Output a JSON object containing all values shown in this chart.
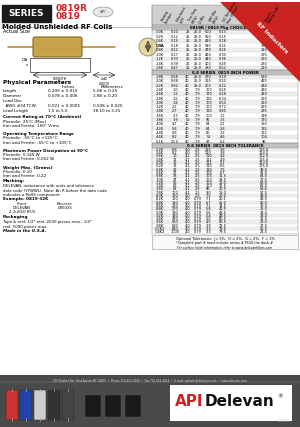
{
  "title_series": "SERIES",
  "title_part1": "0819R",
  "title_part2": "0819",
  "subtitle": "Molded Unshielded RF Coils",
  "actual_size_label": "Actual Size",
  "rf_inductors_label": "RF Inductors",
  "table1_header": "0819R / 0819 Pkg CHOICE CONT.",
  "table2_header": "0.8 SERIES  0819 INCH POWER",
  "table3_header": "0.8 SERIES  0819 INCH TOLERANCE",
  "col_headers": [
    "Catalog\nNumber",
    "Inductance\n(uH)",
    "Test\nFreq\n(MHz)",
    "Q\nMin",
    "SRF\nMin\n(MHz)",
    "DC\nResistance\nMax\n(Ohms)",
    "Current\nRating\n(mA)"
  ],
  "table1_data": [
    [
      "-00K",
      "0.10",
      "25",
      "25.0",
      "500",
      "0.13",
      "495"
    ],
    [
      "-02K",
      "0.12",
      "25",
      "25.0",
      "550",
      "0.15",
      "450"
    ],
    [
      "-04K",
      "0.15",
      "25",
      "25.0",
      "480",
      "0.18",
      "390"
    ],
    [
      "-06K",
      "0.18",
      "25",
      "25.0",
      "540",
      "0.21",
      "355"
    ],
    [
      "-08K",
      "0.22",
      "25",
      "25.0",
      "470",
      "0.26",
      "310"
    ],
    [
      "-10K",
      "0.27",
      "25",
      "25.0",
      "480",
      "0.30",
      "285"
    ],
    [
      "-12K",
      "0.33",
      "25",
      "25.0",
      "440",
      "0.36",
      "260"
    ],
    [
      "-14K",
      "0.39",
      "25",
      "25.0",
      "400",
      "0.45",
      "230"
    ],
    [
      "-16K",
      "0.47",
      "25",
      "25.0",
      "380",
      "0.52",
      "210"
    ]
  ],
  "table2_data": [
    [
      "-18K",
      "0.56",
      "40",
      "25.0",
      "270",
      "0.19",
      "510"
    ],
    [
      "-20K",
      "0.68",
      "40",
      "25.0",
      "215",
      "0.20",
      "465"
    ],
    [
      "-22K",
      "0.82",
      "40",
      "25.0",
      "200",
      "0.22",
      "430"
    ],
    [
      "-24K",
      "1.0",
      "40",
      "7.9",
      "100",
      "0.25",
      "430"
    ],
    [
      "-26K",
      "1.2",
      "40",
      "7.9",
      "170",
      "0.28",
      "410"
    ],
    [
      "-28K",
      "1.5",
      "40",
      "7.9",
      "125",
      "0.34",
      "360"
    ],
    [
      "-30K",
      "1.8",
      "40",
      "7.9",
      "105",
      "0.50",
      "290"
    ],
    [
      "-32K",
      "2.2",
      "40",
      "7.9",
      "100",
      "0.72",
      "255"
    ],
    [
      "-34K",
      "2.7",
      "40",
      "7.9",
      "115",
      "0.85",
      "235"
    ],
    [
      "-36K",
      "3.3",
      "40",
      "7.9",
      "100",
      "1.2",
      "198"
    ],
    [
      "-38K",
      "3.9",
      "50",
      "7.9",
      "95",
      "1.5",
      "170"
    ],
    [
      "-40K",
      "4.7",
      "40",
      "7.9",
      "84",
      "2.1",
      "150"
    ],
    [
      "-42K",
      "5.6",
      "40",
      "7.9",
      "64",
      "2.6",
      "135"
    ],
    [
      "-44K",
      "6.8",
      "40",
      "7.9",
      "60",
      "3.2",
      "122"
    ],
    [
      "-46K",
      "8.2",
      "40",
      "7.9",
      "52",
      "4.6",
      "104"
    ],
    [
      "-51K",
      "10.0",
      "40",
      "7.9",
      "47",
      "5.2",
      "96"
    ]
  ],
  "table3_data": [
    [
      "-52K",
      "6.8",
      "4.0",
      "2.5",
      "215",
      "3.6",
      "125.0"
    ],
    [
      "-54K",
      "8.2",
      "4.0",
      "2.5",
      "210",
      "3.8",
      "114.0"
    ],
    [
      "-56K",
      "10",
      "4.1",
      "2.5",
      "110",
      "4.4",
      "112.0"
    ],
    [
      "-58K",
      "12",
      "4.1",
      "2.5",
      "111",
      "4.9",
      "115.0"
    ],
    [
      "-60K",
      "15",
      "4.1",
      "2.5",
      "111",
      "5.7",
      "113.0"
    ],
    [
      "-62K",
      "18",
      "4.1",
      "2.5",
      "110",
      "6.5",
      "105.0"
    ],
    [
      "-64K",
      "22",
      "4.1",
      "2.5",
      "110",
      "7.5",
      "99.0"
    ],
    [
      "-66K",
      "27",
      "4.1",
      "2.5",
      "105",
      "8.7",
      "92.0"
    ],
    [
      "-68K",
      "33",
      "4.1",
      "2.5",
      "105",
      "11.5",
      "84.0"
    ],
    [
      "-70K",
      "47",
      "4.1",
      "2.5",
      "100",
      "14.5",
      "72.0"
    ],
    [
      "-72K",
      "56",
      "4.1",
      "2.5",
      "100",
      "16.0",
      "68.0"
    ],
    [
      "-74K",
      "68",
      "4.1",
      "2.5",
      "100",
      "17.5",
      "62.0"
    ],
    [
      "-76K",
      "82",
      "4.1",
      "2.5",
      "90",
      "20.5",
      "54.6"
    ],
    [
      "-78K",
      "100",
      "4.1",
      "2.5",
      "9.0",
      "18.0",
      "57.0"
    ],
    [
      "-80K",
      "120",
      "4.0",
      "2.5",
      "7.5",
      "20.0",
      "49.0"
    ],
    [
      "-82K",
      "150",
      "4.0",
      "0.79",
      "7.1",
      "20.1",
      "43.5"
    ],
    [
      "-84K",
      "180",
      "4.0",
      "0.79",
      "6.7",
      "25.0",
      "40.0"
    ],
    [
      "-86K",
      "220",
      "4.0",
      "0.79",
      "7.1",
      "34.5",
      "38.0"
    ],
    [
      "-88K",
      "270",
      "4.0",
      "0.79",
      "5.8",
      "40.5",
      "35.0"
    ],
    [
      "-90K",
      "330",
      "4.0",
      "0.79",
      "5.6",
      "43.5",
      "34.0"
    ],
    [
      "-92K",
      "390",
      "4.0",
      "0.79",
      "5.4",
      "48.5",
      "33.0"
    ],
    [
      "-94K",
      "470",
      "4.0",
      "0.79",
      "5.0",
      "60.5",
      "31.5"
    ],
    [
      "-96K",
      "560",
      "4.0",
      "0.79",
      "4.5",
      "80.5",
      "28.0"
    ],
    [
      "-98K",
      "680",
      "4.0",
      "0.79",
      "3.9",
      "72.5",
      "27.0"
    ],
    [
      "-02K2",
      "820",
      "4.0",
      "0.79",
      "3.3",
      "79.5",
      "25.5"
    ],
    [
      "-04K2",
      "1000",
      "4.0",
      "0.79",
      "3.3",
      "79.5",
      "24.5"
    ]
  ],
  "optional_tol": "Optional Tolerances:  J= 5%,  H = 2%,  G = 2%,  F = 1%",
  "complete_part": "*Complete part # must include series # PLUS the dash #",
  "surface_finish": "For surface finish information, refer to www.delevanfilters.com",
  "footer_address": "270 Quaker Rd., East Aurora NY 14052  •  Phone 716-652-3600  •  Fax 716-652-4814  •  E-mail: apisales@delevan.com  •  www.delevan.com",
  "footer_date": "1/2008",
  "bg_color": "#ffffff",
  "red_color": "#cc2222",
  "footer_bar_color": "#555555"
}
